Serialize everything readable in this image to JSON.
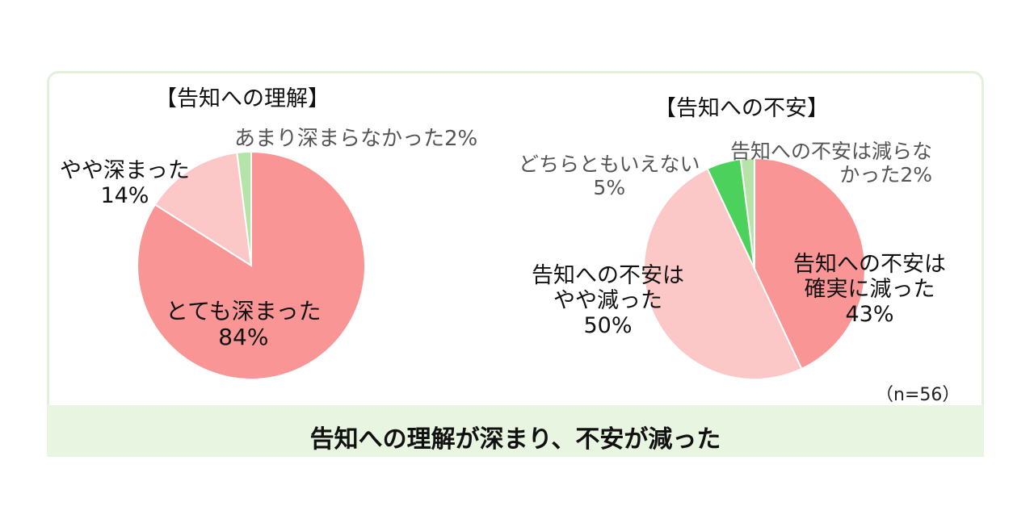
{
  "footer": {
    "text": "告知への理解が深まり、不安が減った"
  },
  "note": "（n=56）",
  "chart_data": [
    {
      "type": "pie",
      "title": "【告知への理解】",
      "slices": [
        {
          "label": "とても深まった",
          "value": 84,
          "color": "#fa9595"
        },
        {
          "label": "やや深まった",
          "value": 14,
          "color": "#fcc7c7"
        },
        {
          "label": "あまり深まらなかった",
          "value": 2,
          "color": "#b5e3a8"
        }
      ],
      "data_labels": [
        {
          "name": "とても深まった",
          "pct": "84%"
        },
        {
          "name": "やや深まった",
          "pct": "14%"
        },
        {
          "name": "あまり深まらなかった",
          "pct": "2%"
        }
      ]
    },
    {
      "type": "pie",
      "title": "【告知への不安】",
      "slices": [
        {
          "label": "告知への不安は確実に減った",
          "value": 43,
          "color": "#fa9595"
        },
        {
          "label": "告知への不安はやや減った",
          "value": 50,
          "color": "#fcc7c7"
        },
        {
          "label": "どちらともいえない",
          "value": 5,
          "color": "#4cd25c"
        },
        {
          "label": "告知への不安は減らなかった",
          "value": 2,
          "color": "#b5e3a8"
        }
      ],
      "data_labels": [
        {
          "line1": "告知への不安は",
          "line2": "確実に減った",
          "pct": "43%"
        },
        {
          "line1": "告知への不安は",
          "line2": "やや減った",
          "pct": "50%"
        },
        {
          "name": "どちらともいえない",
          "pct": "5%"
        },
        {
          "line1": "告知への不安は減らな",
          "line2": "かった",
          "pct": "2%"
        }
      ]
    }
  ]
}
